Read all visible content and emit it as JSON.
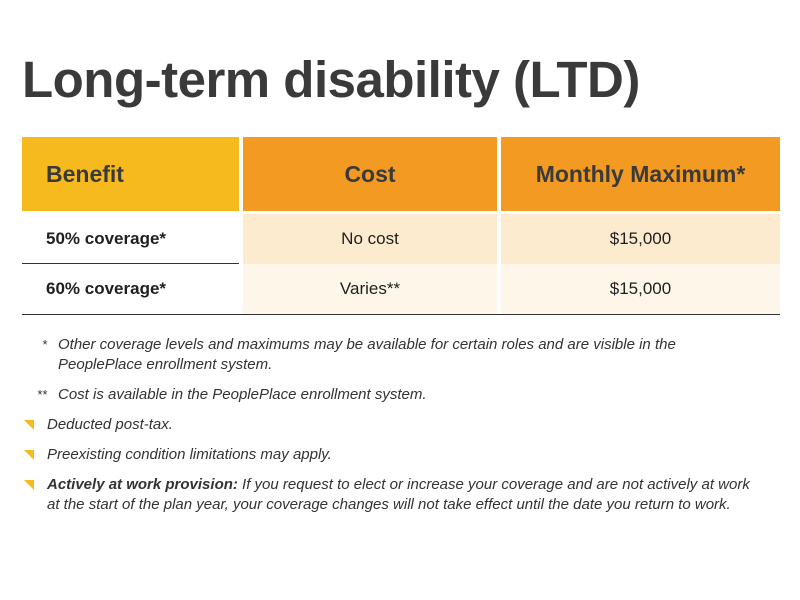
{
  "title": "Long-term disability (LTD)",
  "table": {
    "headers": {
      "benefit": "Benefit",
      "cost": "Cost",
      "max": "Monthly Maximum*"
    },
    "rows": [
      {
        "benefit": "50% coverage*",
        "cost": "No cost",
        "max": "$15,000"
      },
      {
        "benefit": "60% coverage*",
        "cost": "Varies**",
        "max": "$15,000"
      }
    ]
  },
  "notes": [
    {
      "marker": "*",
      "text": "Other coverage levels and maximums may be available for certain roles and are visible in the PeoplePlace enrollment system."
    },
    {
      "marker": "**",
      "text": "Cost is available in the PeoplePlace enrollment system."
    },
    {
      "marker": "triangle",
      "text": "Deducted post-tax."
    },
    {
      "marker": "triangle",
      "text": "Preexisting condition limitations may apply."
    },
    {
      "marker": "triangle",
      "bold": "Actively at work provision:",
      "text": " If you request to elect or increase your coverage and are not actively at work at the start of the plan year, your coverage changes will not take effect until the date you return to work."
    }
  ],
  "colors": {
    "header_light": "#f6b91e",
    "header_dark": "#f29a22",
    "row1_fill": "#fdebcf",
    "row2_fill": "#fef6e8"
  }
}
